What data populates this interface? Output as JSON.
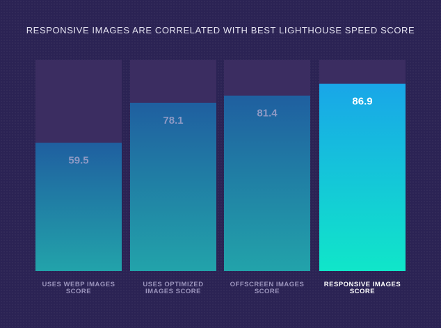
{
  "chart_data": {
    "type": "bar",
    "title": "RESPONSIVE IMAGES ARE CORRELATED WITH BEST LIGHTHOUSE SPEED SCORE",
    "categories": [
      [
        "USES WEBP IMAGES",
        "SCORE"
      ],
      [
        "USES OPTIMIZED",
        "IMAGES SCORE"
      ],
      [
        "OFFSCREEN IMAGES",
        "SCORE"
      ],
      [
        "RESPONSIVE IMAGES",
        "SCORE"
      ]
    ],
    "values": [
      59.5,
      78.1,
      81.4,
      86.9
    ],
    "value_labels": [
      "59.5",
      "78.1",
      "81.4",
      "86.9"
    ],
    "highlight_index": 3,
    "ylim": [
      0,
      100
    ],
    "xlabel": "",
    "ylabel": "",
    "grid": false,
    "legend": "none"
  },
  "colors": {
    "background": "#2b2354",
    "track": "#3b2d61",
    "bar_top": "#1f5fa0",
    "bar_bottom": "#22a3aa",
    "highlight_top": "#19a6e8",
    "highlight_bottom": "#10e6c9",
    "value_text": "#8e99c4",
    "highlight_value_text": "#ffffff",
    "label_text": "#9c95bd",
    "highlight_label_text": "#ffffff",
    "title_text": "#e4e2f0"
  }
}
